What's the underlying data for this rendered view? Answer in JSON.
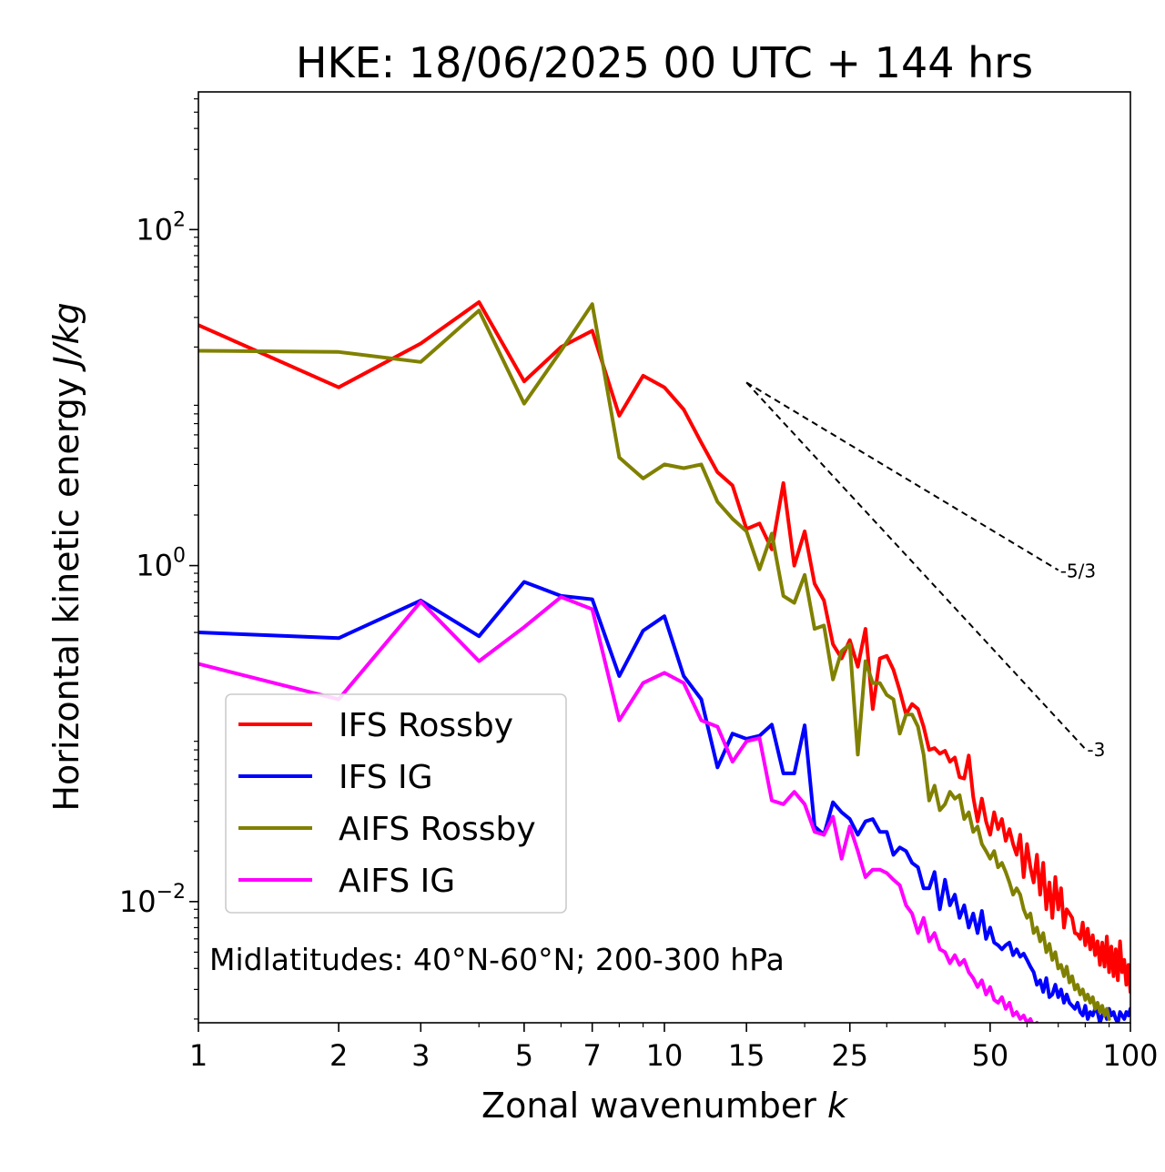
{
  "chart_data": {
    "type": "line",
    "title": "HKE: 18/06/2025 00 UTC + 144 hrs",
    "xlabel": "Zonal wavenumber",
    "xlabel_var": "k",
    "ylabel": "Horizontal kinetic energy",
    "ylabel_unit": "J/kg",
    "xscale": "log",
    "yscale": "log",
    "xlim": [
      1,
      100
    ],
    "ylim": [
      0.0019,
      660
    ],
    "x_ticks": [
      1,
      2,
      3,
      5,
      7,
      10,
      15,
      25,
      50,
      100
    ],
    "x_tick_labels": [
      "1",
      "2",
      "3",
      "5",
      "7",
      "10",
      "15",
      "25",
      "50",
      "100"
    ],
    "y_ticks": [
      0.01,
      1,
      100
    ],
    "y_tick_labels": [
      {
        "base": "10",
        "exp": "−2"
      },
      {
        "base": "10",
        "exp": "0"
      },
      {
        "base": "10",
        "exp": "2"
      }
    ],
    "annotation": "Midlatitudes: 40°N-60°N; 200-300 hPa",
    "legend_position": "lower-left",
    "reference_lines": [
      {
        "label": "-5/3",
        "x": [
          15,
          70
        ],
        "y": [
          12.3,
          0.94
        ]
      },
      {
        "label": "-3",
        "x": [
          15,
          80
        ],
        "y": [
          12.3,
          0.081
        ]
      }
    ],
    "series": [
      {
        "name": "IFS Rossby",
        "color": "#ff0000",
        "x": [
          1,
          2,
          3,
          4,
          5,
          6,
          7,
          8,
          9,
          10,
          11,
          12,
          13,
          14,
          15,
          16,
          17,
          18,
          19,
          20,
          21,
          22,
          23,
          24,
          25,
          26,
          27,
          28,
          29,
          30,
          31,
          32,
          33,
          34,
          35,
          36,
          37,
          38,
          39,
          40,
          41,
          42,
          43,
          44,
          45,
          46,
          47,
          48,
          49,
          50,
          51,
          52,
          53,
          54,
          55,
          56,
          57,
          58,
          59,
          60,
          61,
          62,
          63,
          64,
          65,
          66,
          67,
          68,
          69,
          70,
          71,
          72,
          73,
          74,
          75,
          76,
          77,
          78,
          79,
          80,
          81,
          82,
          83,
          84,
          85,
          86,
          87,
          88,
          89,
          90,
          91,
          92,
          93,
          94,
          95,
          96,
          97,
          98,
          99,
          100
        ],
        "y": [
          27,
          11.5,
          21,
          37,
          12.5,
          20,
          25,
          7.8,
          13.5,
          11.5,
          8.5,
          5.4,
          3.6,
          3.0,
          1.65,
          1.78,
          1.25,
          3.1,
          1.0,
          1.6,
          0.78,
          0.62,
          0.34,
          0.28,
          0.36,
          0.25,
          0.42,
          0.14,
          0.28,
          0.29,
          0.24,
          0.18,
          0.13,
          0.15,
          0.14,
          0.11,
          0.08,
          0.082,
          0.076,
          0.079,
          0.068,
          0.072,
          0.055,
          0.054,
          0.074,
          0.042,
          0.03,
          0.041,
          0.03,
          0.025,
          0.034,
          0.027,
          0.031,
          0.023,
          0.027,
          0.022,
          0.019,
          0.025,
          0.014,
          0.022,
          0.016,
          0.013,
          0.019,
          0.011,
          0.017,
          0.009,
          0.013,
          0.008,
          0.014,
          0.009,
          0.012,
          0.007,
          0.009,
          0.0085,
          0.008,
          0.0065,
          0.0064,
          0.006,
          0.0075,
          0.0055,
          0.0069,
          0.0052,
          0.0063,
          0.0048,
          0.0058,
          0.0042,
          0.0057,
          0.0041,
          0.0062,
          0.0038,
          0.0054,
          0.0036,
          0.0052,
          0.0034,
          0.0058,
          0.0038,
          0.0045,
          0.0032,
          0.0042,
          0.0029
        ]
      },
      {
        "name": "IFS IG",
        "color": "#0000ff",
        "x": [
          1,
          2,
          3,
          4,
          5,
          6,
          7,
          8,
          9,
          10,
          11,
          12,
          13,
          14,
          15,
          16,
          17,
          18,
          19,
          20,
          21,
          22,
          23,
          24,
          25,
          26,
          27,
          28,
          29,
          30,
          31,
          32,
          33,
          34,
          35,
          36,
          37,
          38,
          39,
          40,
          41,
          42,
          43,
          44,
          45,
          46,
          47,
          48,
          49,
          50,
          51,
          52,
          53,
          54,
          55,
          56,
          57,
          58,
          59,
          60,
          61,
          62,
          63,
          64,
          65,
          66,
          67,
          68,
          69,
          70,
          71,
          72,
          73,
          74,
          75,
          76,
          77,
          78,
          79,
          80,
          81,
          82,
          83,
          84,
          85,
          86,
          87,
          88,
          89,
          90,
          91,
          92,
          93,
          94,
          95,
          96,
          97,
          98,
          99,
          100
        ],
        "y": [
          0.4,
          0.37,
          0.62,
          0.38,
          0.8,
          0.66,
          0.63,
          0.22,
          0.41,
          0.5,
          0.22,
          0.16,
          0.063,
          0.1,
          0.093,
          0.097,
          0.113,
          0.058,
          0.058,
          0.112,
          0.028,
          0.025,
          0.039,
          0.034,
          0.031,
          0.025,
          0.03,
          0.031,
          0.026,
          0.026,
          0.019,
          0.021,
          0.02,
          0.017,
          0.016,
          0.012,
          0.012,
          0.015,
          0.009,
          0.0135,
          0.0095,
          0.011,
          0.008,
          0.0095,
          0.007,
          0.0085,
          0.0065,
          0.0088,
          0.006,
          0.007,
          0.0057,
          0.0055,
          0.0052,
          0.0055,
          0.0057,
          0.0048,
          0.0052,
          0.0047,
          0.0049,
          0.0045,
          0.0041,
          0.0038,
          0.0032,
          0.0034,
          0.0029,
          0.0035,
          0.0027,
          0.0028,
          0.0032,
          0.0027,
          0.003,
          0.0025,
          0.0028,
          0.0025,
          0.0024,
          0.0023,
          0.0025,
          0.0022,
          0.0021,
          0.0024,
          0.002,
          0.0022,
          0.0021,
          0.0023,
          0.0022,
          0.0019,
          0.0021,
          0.0022,
          0.002,
          0.0023,
          0.0021,
          0.0022,
          0.002,
          0.0019,
          0.0022,
          0.0021,
          0.002,
          0.0022,
          0.0021,
          0.0023
        ]
      },
      {
        "name": "AIFS Rossby",
        "color": "#808000",
        "x": [
          1,
          2,
          3,
          4,
          5,
          6,
          7,
          8,
          9,
          10,
          11,
          12,
          13,
          14,
          15,
          16,
          17,
          18,
          19,
          20,
          21,
          22,
          23,
          24,
          25,
          26,
          27,
          28,
          29,
          30,
          31,
          32,
          33,
          34,
          35,
          36,
          37,
          38,
          39,
          40,
          41,
          42,
          43,
          44,
          45,
          46,
          47,
          48,
          49,
          50,
          51,
          52,
          53,
          54,
          55,
          56,
          57,
          58,
          59,
          60,
          61,
          62,
          63,
          64,
          65,
          66,
          67,
          68,
          69,
          70,
          71,
          72,
          73,
          74,
          75,
          76,
          77,
          78,
          79,
          80,
          81,
          82,
          83,
          84,
          85,
          86,
          87,
          88,
          89,
          90
        ],
        "y": [
          19,
          18.7,
          16.3,
          33,
          9.2,
          19,
          36,
          4.4,
          3.3,
          4.0,
          3.8,
          4.0,
          2.4,
          1.9,
          1.6,
          0.95,
          1.55,
          0.66,
          0.6,
          0.88,
          0.42,
          0.44,
          0.21,
          0.31,
          0.34,
          0.075,
          0.27,
          0.2,
          0.2,
          0.17,
          0.16,
          0.1,
          0.13,
          0.13,
          0.11,
          0.075,
          0.04,
          0.049,
          0.035,
          0.038,
          0.045,
          0.041,
          0.043,
          0.031,
          0.034,
          0.026,
          0.028,
          0.022,
          0.02,
          0.018,
          0.02,
          0.016,
          0.017,
          0.015,
          0.013,
          0.011,
          0.012,
          0.011,
          0.009,
          0.008,
          0.0085,
          0.0065,
          0.007,
          0.0058,
          0.0065,
          0.005,
          0.0056,
          0.0045,
          0.005,
          0.004,
          0.0042,
          0.0036,
          0.0041,
          0.0033,
          0.0036,
          0.003,
          0.0032,
          0.0028,
          0.003,
          0.0026,
          0.0028,
          0.0025,
          0.0027,
          0.0023,
          0.0025,
          0.0022,
          0.0024,
          0.0021,
          0.0023,
          0.002
        ]
      },
      {
        "name": "AIFS IG",
        "color": "#ff00ff",
        "x": [
          1,
          2,
          3,
          4,
          5,
          6,
          7,
          8,
          9,
          10,
          11,
          12,
          13,
          14,
          15,
          16,
          17,
          18,
          19,
          20,
          21,
          22,
          23,
          24,
          25,
          26,
          27,
          28,
          29,
          30,
          31,
          32,
          33,
          34,
          35,
          36,
          37,
          38,
          39,
          40,
          41,
          42,
          43,
          44,
          45,
          46,
          47,
          48,
          49,
          50,
          51,
          52,
          53,
          54,
          55,
          56,
          57,
          58,
          59,
          60,
          61,
          62,
          63,
          64,
          65,
          66,
          67,
          68,
          69,
          70,
          71,
          72,
          73,
          74,
          75,
          76,
          77,
          78,
          79,
          80
        ],
        "y": [
          0.26,
          0.16,
          0.61,
          0.27,
          0.43,
          0.65,
          0.55,
          0.12,
          0.2,
          0.23,
          0.2,
          0.12,
          0.11,
          0.068,
          0.09,
          0.094,
          0.04,
          0.038,
          0.045,
          0.038,
          0.026,
          0.025,
          0.032,
          0.018,
          0.028,
          0.02,
          0.014,
          0.0155,
          0.0155,
          0.0148,
          0.0135,
          0.0125,
          0.0095,
          0.0085,
          0.0065,
          0.008,
          0.0058,
          0.0065,
          0.0052,
          0.005,
          0.0043,
          0.0048,
          0.0042,
          0.0045,
          0.0038,
          0.0035,
          0.0031,
          0.0034,
          0.0028,
          0.0031,
          0.0026,
          0.0025,
          0.0027,
          0.0023,
          0.0025,
          0.0021,
          0.0022,
          0.002,
          0.0021,
          0.0019,
          0.002,
          0.0018,
          0.0019,
          0.0017,
          0.0018,
          0.0016,
          0.0017,
          0.0015,
          0.0016,
          0.0015,
          0.0014,
          0.0015,
          0.0014,
          0.0013,
          0.0014,
          0.0013,
          0.0012,
          0.0013,
          0.0012,
          0.0012
        ]
      }
    ]
  }
}
